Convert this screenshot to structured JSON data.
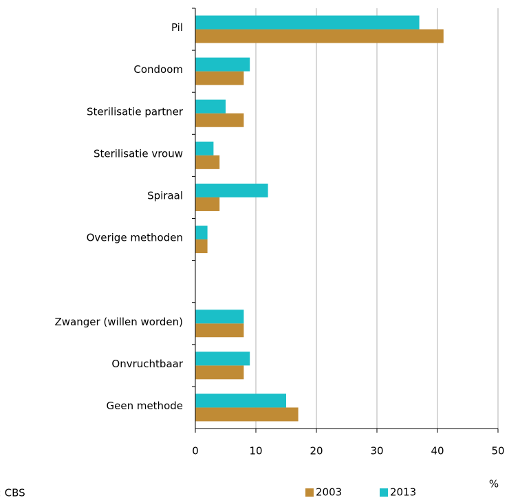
{
  "chart_data": {
    "type": "bar",
    "orientation": "horizontal",
    "categories": [
      "Pil",
      "Condoom",
      "Sterilisatie partner",
      "Sterilisatie vrouw",
      "Spiraal",
      "Overige methoden",
      null,
      "Zwanger (willen worden)",
      "Onvruchtbaar",
      "Geen methode"
    ],
    "series": [
      {
        "name": "2003",
        "color": "#c08b35",
        "values": [
          41,
          8,
          8,
          4,
          4,
          2,
          null,
          8,
          8,
          17
        ]
      },
      {
        "name": "2013",
        "color": "#1bbfc8",
        "values": [
          37,
          9,
          5,
          3,
          12,
          2,
          null,
          8,
          9,
          15
        ]
      }
    ],
    "xlim": [
      0,
      50
    ],
    "xticks": [
      0,
      10,
      20,
      30,
      40,
      50
    ],
    "grid": true,
    "x_unit": "%",
    "source": "Bron: CBS",
    "legend": "bottom"
  }
}
